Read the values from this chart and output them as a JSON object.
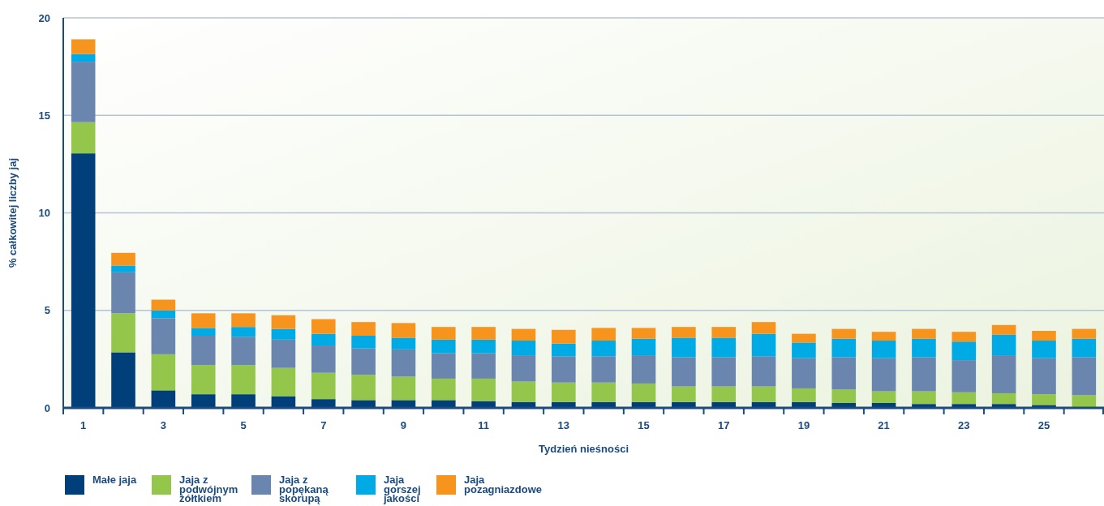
{
  "chart_data": {
    "type": "bar",
    "stacked": true,
    "xlabel": "Tydzień nieśności",
    "ylabel": "% całkowitej liczby jaj",
    "categories": [
      "1",
      null,
      "3",
      null,
      "5",
      null,
      "7",
      null,
      "9",
      null,
      "11",
      null,
      "13",
      null,
      "15",
      null,
      "17",
      null,
      "19",
      null,
      "21",
      null,
      "23",
      null,
      "25",
      null
    ],
    "series": [
      {
        "name": "Małe jaja",
        "color": "#003f7a",
        "values": [
          13.05,
          2.85,
          0.9,
          0.7,
          0.7,
          0.6,
          0.45,
          0.4,
          0.4,
          0.4,
          0.35,
          0.3,
          0.3,
          0.3,
          0.3,
          0.3,
          0.3,
          0.3,
          0.3,
          0.25,
          0.25,
          0.2,
          0.2,
          0.2,
          0.15,
          0
        ]
      },
      {
        "name": "Jaja z podwójnym żółtkiem",
        "color": "#93c64a",
        "values": [
          1.6,
          2.0,
          1.85,
          1.5,
          1.5,
          1.45,
          1.35,
          1.3,
          1.2,
          1.1,
          1.15,
          1.05,
          1.0,
          1.0,
          0.95,
          0.8,
          0.8,
          0.8,
          0.7,
          0.7,
          0.6,
          0.65,
          0.6,
          0.55,
          0.55,
          0.65
        ]
      },
      {
        "name": "Jaja z popękaną skorupą",
        "color": "#6a86ae",
        "values": [
          3.1,
          2.1,
          1.85,
          1.5,
          1.45,
          1.45,
          1.4,
          1.35,
          1.4,
          1.3,
          1.3,
          1.35,
          1.35,
          1.35,
          1.45,
          1.5,
          1.5,
          1.55,
          1.55,
          1.65,
          1.7,
          1.75,
          1.65,
          1.95,
          1.85,
          1.95
        ]
      },
      {
        "name": "Jaja gorszej jakości",
        "color": "#00abe5",
        "values": [
          0.4,
          0.35,
          0.4,
          0.4,
          0.5,
          0.55,
          0.6,
          0.65,
          0.6,
          0.7,
          0.7,
          0.75,
          0.65,
          0.8,
          0.85,
          1.0,
          1.0,
          1.15,
          0.8,
          0.95,
          0.9,
          0.95,
          0.95,
          1.05,
          0.9,
          0.95
        ]
      },
      {
        "name": "Jaja pozagniazdowe",
        "color": "#f7941d",
        "values": [
          0.75,
          0.65,
          0.55,
          0.75,
          0.7,
          0.7,
          0.75,
          0.7,
          0.75,
          0.65,
          0.65,
          0.6,
          0.7,
          0.65,
          0.55,
          0.55,
          0.55,
          0.6,
          0.45,
          0.5,
          0.45,
          0.5,
          0.5,
          0.5,
          0.5,
          0.5
        ]
      }
    ],
    "ylim": [
      0,
      20
    ],
    "yticks": [
      0,
      5,
      10,
      15,
      20
    ],
    "grid": "y",
    "legend": "bottom"
  }
}
